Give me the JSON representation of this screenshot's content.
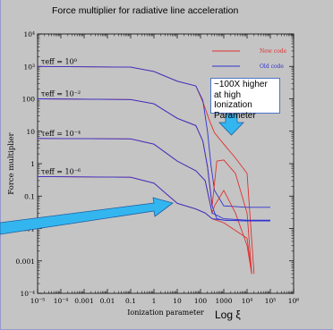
{
  "chart_data": {
    "type": "line",
    "title": "Force multiplier for radiative line acceleration",
    "xlabel": "Ionization parameter",
    "xlabel_extra": "Log ξ",
    "ylabel": "Force multiplier",
    "xscale": "log",
    "yscale": "log",
    "xlim": [
      1e-05,
      1000000.0
    ],
    "ylim": [
      0.0001,
      10000.0
    ],
    "x_tick_labels": [
      "10⁻⁵",
      "10⁻⁴",
      "0.001",
      "0.01",
      "0.1",
      "1",
      "10",
      "100",
      "1000",
      "10⁴",
      "10⁵",
      "10⁶"
    ],
    "y_tick_labels": [
      "10⁻⁴",
      "0.001",
      "0.01",
      "0.1",
      "1",
      "10",
      "100",
      "10³",
      "10⁴"
    ],
    "legend": {
      "placement": "top-right",
      "entries": [
        {
          "name": "New code",
          "color": "#e03030"
        },
        {
          "name": "Old code",
          "color": "#3030d0"
        }
      ]
    },
    "curve_labels": [
      "τeff = 10⁰",
      "τeff = 10⁻²",
      "τeff = 10⁻⁴",
      "τeff = 10⁻⁶"
    ],
    "series": [
      {
        "name": "New code",
        "group": "τeff = 10⁰",
        "color": "#e03030",
        "points": [
          [
            -5,
            1000
          ],
          [
            -1,
            950
          ],
          [
            0,
            700
          ],
          [
            1,
            350
          ],
          [
            1.8,
            250
          ],
          [
            2.1,
            80
          ],
          [
            2.4,
            20
          ],
          [
            2.6,
            9
          ],
          [
            3,
            4
          ],
          [
            3.5,
            1.5
          ],
          [
            4,
            0.5
          ],
          [
            4.3,
            0.0004
          ]
        ]
      },
      {
        "name": "Old code",
        "group": "τeff = 10⁰",
        "color": "#3030d0",
        "points": [
          [
            -5,
            1000
          ],
          [
            -1,
            950
          ],
          [
            0,
            700
          ],
          [
            1,
            350
          ],
          [
            1.8,
            250
          ],
          [
            2.1,
            90
          ],
          [
            2.3,
            10
          ],
          [
            2.45,
            0.9
          ],
          [
            2.6,
            0.15
          ],
          [
            3,
            0.05
          ],
          [
            4,
            0.045
          ],
          [
            5,
            0.045
          ]
        ]
      },
      {
        "name": "New code",
        "group": "τeff = 10⁻²",
        "color": "#e03030",
        "points": [
          [
            -5,
            100
          ],
          [
            -1,
            95
          ],
          [
            0,
            70
          ],
          [
            1,
            25
          ],
          [
            1.8,
            15
          ],
          [
            2.1,
            5
          ],
          [
            2.3,
            0.8
          ],
          [
            2.5,
            0.05
          ],
          [
            2.7,
            1.2
          ],
          [
            3,
            1.3
          ],
          [
            3.5,
            0.5
          ],
          [
            4,
            0.03
          ],
          [
            4.2,
            0.0004
          ]
        ]
      },
      {
        "name": "Old code",
        "group": "τeff = 10⁻²",
        "color": "#3030d0",
        "points": [
          [
            -5,
            100
          ],
          [
            -1,
            95
          ],
          [
            0,
            70
          ],
          [
            1,
            25
          ],
          [
            1.8,
            15
          ],
          [
            2.1,
            5
          ],
          [
            2.3,
            0.8
          ],
          [
            2.5,
            0.05
          ],
          [
            2.7,
            0.02
          ],
          [
            3,
            0.018
          ],
          [
            4,
            0.017
          ],
          [
            5,
            0.017
          ]
        ]
      },
      {
        "name": "New code",
        "group": "τeff = 10⁻⁴",
        "color": "#e03030",
        "points": [
          [
            -5,
            6
          ],
          [
            -1,
            5.8
          ],
          [
            0,
            4
          ],
          [
            1,
            1.2
          ],
          [
            1.8,
            0.6
          ],
          [
            2.2,
            0.3
          ],
          [
            2.5,
            0.03
          ],
          [
            2.6,
            0.05
          ],
          [
            3,
            0.15
          ],
          [
            3.5,
            0.03
          ],
          [
            4,
            0.003
          ],
          [
            4.2,
            0.0004
          ]
        ]
      },
      {
        "name": "Old code",
        "group": "τeff = 10⁻⁴",
        "color": "#3030d0",
        "points": [
          [
            -5,
            6
          ],
          [
            -1,
            5.8
          ],
          [
            0,
            4
          ],
          [
            1,
            1.2
          ],
          [
            1.8,
            0.6
          ],
          [
            2.2,
            0.3
          ],
          [
            2.5,
            0.03
          ],
          [
            3,
            0.02
          ],
          [
            4,
            0.018
          ],
          [
            5,
            0.018
          ]
        ]
      },
      {
        "name": "New code",
        "group": "τeff = 10⁻⁶",
        "color": "#e03030",
        "points": [
          [
            -5,
            0.4
          ],
          [
            -1,
            0.38
          ],
          [
            0,
            0.25
          ],
          [
            1,
            0.06
          ],
          [
            1.8,
            0.04
          ],
          [
            2.2,
            0.03
          ],
          [
            2.5,
            0.02
          ],
          [
            3,
            0.015
          ],
          [
            4,
            0.005
          ],
          [
            4.2,
            0.0004
          ]
        ]
      },
      {
        "name": "Old code",
        "group": "τeff = 10⁻⁶",
        "color": "#3030d0",
        "points": [
          [
            -5,
            0.4
          ],
          [
            -1,
            0.38
          ],
          [
            0,
            0.25
          ],
          [
            1,
            0.06
          ],
          [
            1.8,
            0.04
          ],
          [
            2.2,
            0.03
          ],
          [
            2.5,
            0.02
          ],
          [
            3,
            0.018
          ],
          [
            4,
            0.017
          ],
          [
            5,
            0.017
          ]
        ]
      }
    ]
  },
  "annotation": {
    "text": "~100X higher at high Ionization Parameter"
  },
  "colors": {
    "background": "#c4c4c4",
    "new_code": "#e03030",
    "old_code": "#3030d0",
    "arrow": "#33b6f0"
  }
}
